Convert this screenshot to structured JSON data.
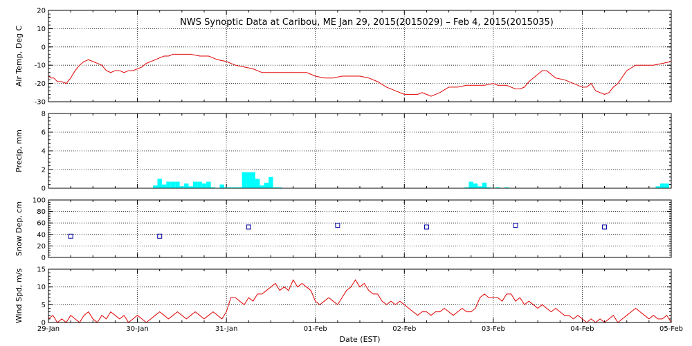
{
  "colors": {
    "line": "#e00000",
    "precip": "#00ffff",
    "snow": "#0000a0",
    "axes": "#000000"
  },
  "chart_data": {
    "title": "NWS Synoptic Data at Caribou, ME   Jan 29, 2015(2015029) – Feb  4, 2015(2015035)",
    "xlabel": "Date (EST)",
    "x_range": [
      0,
      7
    ],
    "x_tick_labels": [
      "29-Jan",
      "30-Jan",
      "31-Jan",
      "01-Feb",
      "02-Feb",
      "03-Feb",
      "04-Feb",
      "05-Feb"
    ],
    "grid": true,
    "panels": [
      {
        "id": "air_temp",
        "type": "line",
        "ylabel": "Air Temp, Deg C",
        "ylim": [
          -30,
          20
        ],
        "yticks": [
          "20",
          "10",
          "0",
          "-10",
          "-20",
          "-30"
        ],
        "x": [
          0,
          0.03,
          0.06,
          0.1,
          0.15,
          0.2,
          0.25,
          0.3,
          0.35,
          0.4,
          0.45,
          0.5,
          0.55,
          0.6,
          0.65,
          0.7,
          0.75,
          0.8,
          0.85,
          0.9,
          0.95,
          1.0,
          1.05,
          1.1,
          1.15,
          1.2,
          1.25,
          1.3,
          1.35,
          1.4,
          1.5,
          1.6,
          1.7,
          1.8,
          1.9,
          2.0,
          2.05,
          2.1,
          2.2,
          2.3,
          2.4,
          2.5,
          2.6,
          2.7,
          2.8,
          2.9,
          3.0,
          3.1,
          3.2,
          3.3,
          3.4,
          3.5,
          3.6,
          3.7,
          3.8,
          3.9,
          4.0,
          4.05,
          4.1,
          4.15,
          4.2,
          4.25,
          4.3,
          4.35,
          4.4,
          4.5,
          4.6,
          4.7,
          4.8,
          4.9,
          5.0,
          5.05,
          5.1,
          5.15,
          5.2,
          5.25,
          5.3,
          5.35,
          5.4,
          5.5,
          5.55,
          5.6,
          5.65,
          5.7,
          5.8,
          5.9,
          6.0,
          6.05,
          6.1,
          6.15,
          6.2,
          6.25,
          6.3,
          6.35,
          6.4,
          6.5,
          6.6,
          6.7,
          6.8,
          6.9,
          7.0
        ],
        "y": [
          -16,
          -17,
          -17,
          -19,
          -19,
          -20,
          -17,
          -13,
          -10,
          -8,
          -7,
          -8,
          -9,
          -10,
          -13,
          -14,
          -13,
          -13,
          -14,
          -13,
          -13,
          -12,
          -11,
          -9,
          -8,
          -7,
          -6,
          -5,
          -5,
          -4,
          -4,
          -4,
          -5,
          -5,
          -7,
          -8,
          -9,
          -10,
          -11,
          -12,
          -14,
          -14,
          -14,
          -14,
          -14,
          -14,
          -16,
          -17,
          -17,
          -16,
          -16,
          -16,
          -17,
          -19,
          -22,
          -24,
          -26,
          -26,
          -26,
          -26,
          -25,
          -26,
          -27,
          -26,
          -25,
          -22,
          -22,
          -21,
          -21,
          -21,
          -20,
          -21,
          -21,
          -21,
          -22,
          -23,
          -23,
          -22,
          -19,
          -15,
          -13,
          -13,
          -15,
          -17,
          -18,
          -20,
          -22,
          -22,
          -20,
          -24,
          -25,
          -26,
          -25,
          -22,
          -20,
          -13,
          -10,
          -10,
          -10,
          -9,
          -8
        ]
      },
      {
        "id": "precip",
        "type": "bar",
        "ylabel": "Precip, mm",
        "ylim": [
          0,
          8
        ],
        "yticks": [
          "8",
          "6",
          "4",
          "2",
          "0"
        ],
        "bar_width": 0.05,
        "x": [
          1.2,
          1.25,
          1.3,
          1.35,
          1.4,
          1.45,
          1.5,
          1.55,
          1.6,
          1.65,
          1.7,
          1.75,
          1.8,
          1.85,
          1.9,
          1.95,
          2.0,
          2.05,
          2.1,
          2.15,
          2.2,
          2.25,
          2.3,
          2.35,
          2.4,
          2.45,
          2.5,
          2.55,
          2.6,
          2.65,
          2.7,
          2.75,
          2.8,
          2.85,
          2.9,
          2.95,
          3.0,
          3.05,
          3.1,
          4.7,
          4.75,
          4.8,
          4.85,
          4.9,
          4.95,
          5.0,
          5.05,
          5.1,
          5.15,
          6.8,
          6.85,
          6.9,
          6.95
        ],
        "values": [
          0.3,
          1.0,
          0.4,
          0.7,
          0.7,
          0.7,
          0.2,
          0.5,
          0.2,
          0.7,
          0.7,
          0.5,
          0.7,
          0.1,
          0,
          0.4,
          0.1,
          0.1,
          0.1,
          0.1,
          1.7,
          1.7,
          1.7,
          1.0,
          0.3,
          0.6,
          1.2,
          0.1,
          0.1,
          0,
          0,
          0,
          0,
          0,
          0,
          0,
          0,
          0,
          0,
          0.1,
          0.7,
          0.5,
          0.2,
          0.6,
          0.1,
          0,
          0.1,
          0,
          0.1,
          0,
          0.2,
          0.5,
          0.5
        ]
      },
      {
        "id": "snow_depth",
        "type": "scatter",
        "ylabel": "Snow Dep, cm",
        "ylim": [
          0,
          100
        ],
        "yticks": [
          "100",
          "80",
          "60",
          "40",
          "20",
          "0"
        ],
        "x": [
          0.25,
          1.25,
          2.25,
          3.25,
          4.25,
          5.25,
          6.25
        ],
        "values": [
          37,
          37,
          53,
          56,
          53,
          56,
          53
        ]
      },
      {
        "id": "wind_speed",
        "type": "line",
        "ylabel": "Wind Spd, m/s",
        "ylim": [
          0,
          15
        ],
        "yticks": [
          "15",
          "10",
          "5",
          "0"
        ],
        "x": [
          0,
          0.05,
          0.1,
          0.15,
          0.2,
          0.25,
          0.3,
          0.35,
          0.4,
          0.45,
          0.5,
          0.55,
          0.6,
          0.65,
          0.7,
          0.75,
          0.8,
          0.85,
          0.9,
          0.95,
          1.0,
          1.05,
          1.1,
          1.15,
          1.2,
          1.25,
          1.3,
          1.35,
          1.4,
          1.45,
          1.5,
          1.55,
          1.6,
          1.65,
          1.7,
          1.75,
          1.8,
          1.85,
          1.9,
          1.95,
          2.0,
          2.05,
          2.1,
          2.15,
          2.2,
          2.25,
          2.3,
          2.35,
          2.4,
          2.45,
          2.5,
          2.55,
          2.6,
          2.65,
          2.7,
          2.75,
          2.8,
          2.85,
          2.9,
          2.95,
          3.0,
          3.05,
          3.1,
          3.15,
          3.2,
          3.25,
          3.3,
          3.35,
          3.4,
          3.45,
          3.5,
          3.55,
          3.6,
          3.65,
          3.7,
          3.75,
          3.8,
          3.85,
          3.9,
          3.95,
          4.0,
          4.05,
          4.1,
          4.15,
          4.2,
          4.25,
          4.3,
          4.35,
          4.4,
          4.45,
          4.5,
          4.55,
          4.6,
          4.65,
          4.7,
          4.75,
          4.8,
          4.85,
          4.9,
          4.95,
          5.0,
          5.05,
          5.1,
          5.15,
          5.2,
          5.25,
          5.3,
          5.35,
          5.4,
          5.45,
          5.5,
          5.55,
          5.6,
          5.65,
          5.7,
          5.75,
          5.8,
          5.85,
          5.9,
          5.95,
          6.0,
          6.05,
          6.1,
          6.15,
          6.2,
          6.25,
          6.3,
          6.35,
          6.4,
          6.45,
          6.5,
          6.55,
          6.6,
          6.65,
          6.7,
          6.75,
          6.8,
          6.85,
          6.9,
          6.95,
          7.0
        ],
        "values": [
          1,
          2,
          0,
          1,
          0,
          2,
          1,
          0,
          2,
          3,
          1,
          0,
          2,
          1,
          3,
          2,
          1,
          2,
          0,
          1,
          2,
          1,
          0,
          1,
          2,
          3,
          2,
          1,
          2,
          3,
          2,
          1,
          2,
          3,
          2,
          1,
          2,
          3,
          2,
          1,
          3,
          7,
          7,
          6,
          5,
          7,
          6,
          8,
          8,
          9,
          10,
          11,
          9,
          10,
          9,
          12,
          10,
          11,
          10,
          9,
          6,
          5,
          6,
          7,
          6,
          5,
          7,
          9,
          10,
          12,
          10,
          11,
          9,
          8,
          8,
          6,
          5,
          6,
          5,
          6,
          5,
          4,
          3,
          2,
          3,
          3,
          2,
          3,
          3,
          4,
          3,
          2,
          3,
          4,
          3,
          3,
          4,
          7,
          8,
          7,
          7,
          7,
          6,
          8,
          8,
          6,
          7,
          5,
          6,
          5,
          4,
          5,
          4,
          3,
          4,
          3,
          2,
          2,
          1,
          2,
          1,
          0,
          1,
          0,
          1,
          0,
          1,
          2,
          0,
          1,
          2,
          3,
          4,
          3,
          2,
          1,
          2,
          1,
          1,
          2,
          0
        ]
      }
    ]
  }
}
